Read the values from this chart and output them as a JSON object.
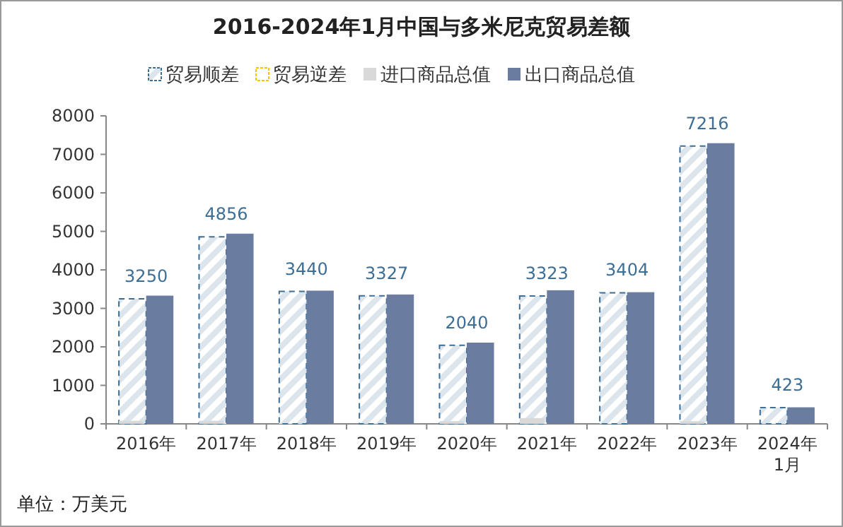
{
  "chart_data": {
    "type": "bar",
    "title": "2016-2024年1月中国与多米尼克贸易差额",
    "categories": [
      "2016年",
      "2017年",
      "2018年",
      "2019年",
      "2020年",
      "2021年",
      "2022年",
      "2023年",
      "2024年\n1月"
    ],
    "series": [
      {
        "name": "贸易顺差",
        "color": "#3c6e96",
        "values": [
          3250,
          4856,
          3440,
          3327,
          2040,
          3323,
          3404,
          7216,
          423
        ],
        "value_labels": [
          "3250",
          "4856",
          "3440",
          "3327",
          "2040",
          "3323",
          "3404",
          "7216",
          "423"
        ]
      },
      {
        "name": "贸易逆差",
        "color": "#ffc000",
        "values": [
          null,
          null,
          null,
          null,
          null,
          null,
          null,
          null,
          null
        ]
      },
      {
        "name": "进口商品总值",
        "color": "#d9d9d9",
        "values": [
          80,
          80,
          null,
          null,
          70,
          150,
          null,
          70,
          null
        ]
      },
      {
        "name": "出口商品总值",
        "color": "#6a7ca0",
        "values": [
          3330,
          4940,
          3460,
          3360,
          2110,
          3470,
          3420,
          7290,
          430
        ]
      }
    ],
    "ylim": [
      0,
      8000
    ],
    "yticks": [
      0,
      1000,
      2000,
      3000,
      4000,
      5000,
      6000,
      7000,
      8000
    ],
    "grid": false,
    "legend": "top",
    "annotations": [
      "单位：万美元"
    ]
  }
}
